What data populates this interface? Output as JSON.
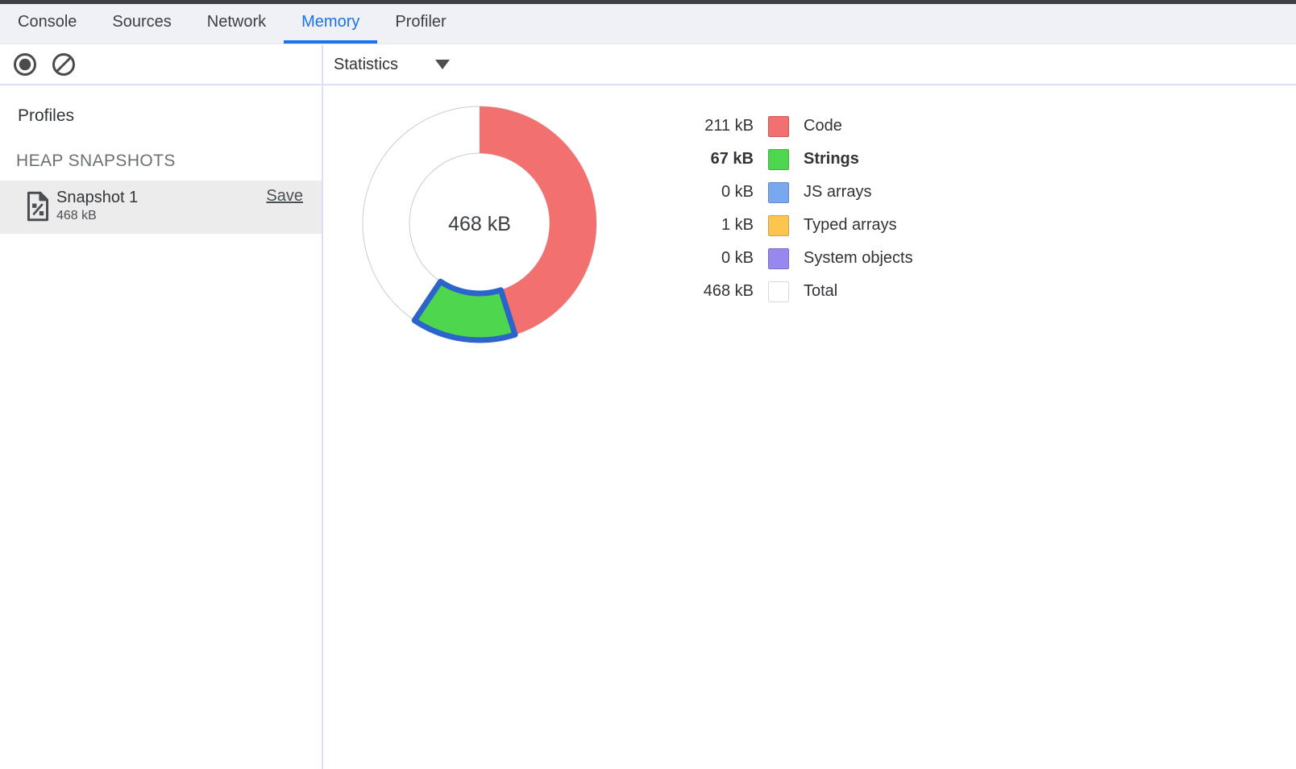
{
  "tabs": {
    "active_index": 3,
    "items": [
      {
        "label": "Console"
      },
      {
        "label": "Sources"
      },
      {
        "label": "Network"
      },
      {
        "label": "Memory"
      },
      {
        "label": "Profiler"
      }
    ]
  },
  "toolbar": {
    "record_icon": "record-heap-snapshot",
    "clear_icon": "clear-all-profiles",
    "view_select": {
      "value": "Statistics"
    }
  },
  "sidebar": {
    "profiles_heading": "Profiles",
    "section_heading": "HEAP SNAPSHOTS",
    "snapshots": [
      {
        "title": "Snapshot 1",
        "subtitle": "468 kB",
        "action": "Save",
        "selected": true
      }
    ]
  },
  "chart_data": {
    "type": "pie",
    "subtype": "donut",
    "center_label": "468 kB",
    "total_kb": 468,
    "legend_position": "right",
    "start_angle_deg": 0,
    "direction": "clockwise",
    "ring_outline_color": "#cccccc",
    "selection_stroke_color": "#2b64ca",
    "series": [
      {
        "name": "Code",
        "value_kb": 211,
        "display": "211 kB",
        "color": "#f2706e",
        "bold": false,
        "selected": false,
        "is_total": false
      },
      {
        "name": "Strings",
        "value_kb": 67,
        "display": "67 kB",
        "color": "#4fd64f",
        "bold": true,
        "selected": true,
        "is_total": false
      },
      {
        "name": "JS arrays",
        "value_kb": 0,
        "display": "0 kB",
        "color": "#79a7f0",
        "bold": false,
        "selected": false,
        "is_total": false
      },
      {
        "name": "Typed arrays",
        "value_kb": 1,
        "display": "1 kB",
        "color": "#fbc64d",
        "bold": false,
        "selected": false,
        "is_total": false
      },
      {
        "name": "System objects",
        "value_kb": 0,
        "display": "0 kB",
        "color": "#9788f0",
        "bold": false,
        "selected": false,
        "is_total": false
      },
      {
        "name": "Total",
        "value_kb": 468,
        "display": "468 kB",
        "color": "#ffffff",
        "bold": false,
        "selected": false,
        "is_total": true
      }
    ]
  }
}
